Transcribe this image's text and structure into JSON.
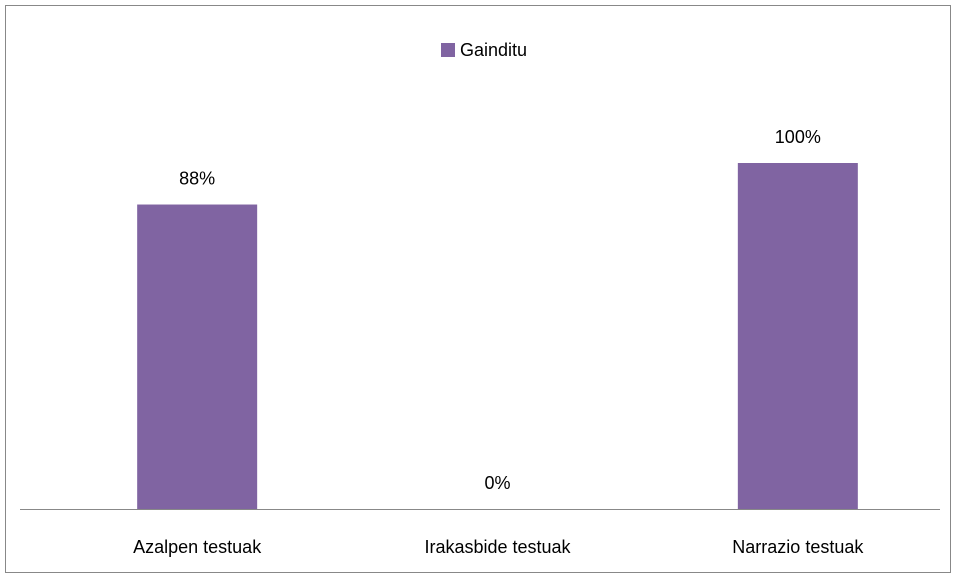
{
  "chart_data": {
    "type": "bar",
    "categories": [
      "Azalpen testuak",
      "Irakasbide testuak",
      "Narrazio testuak"
    ],
    "series": [
      {
        "name": "Gainditu",
        "color": "#8064a2",
        "values": [
          88,
          0,
          100
        ],
        "value_labels": [
          "88%",
          "0%",
          "100%"
        ]
      }
    ]
  }
}
